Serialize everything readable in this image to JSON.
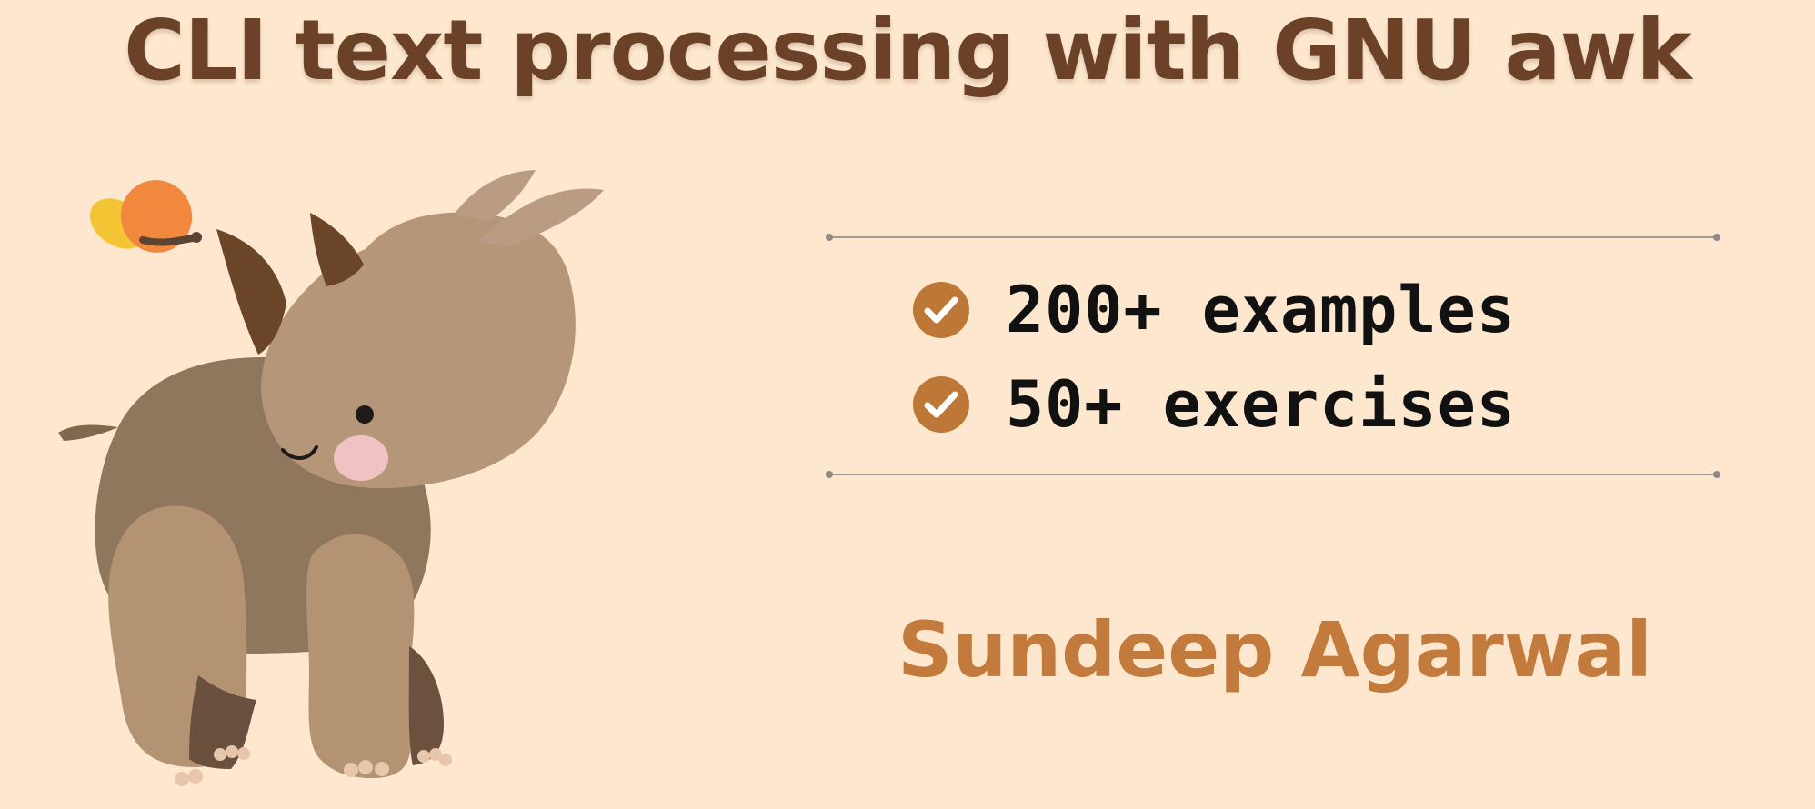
{
  "header": {
    "title": "CLI text processing with GNU awk"
  },
  "features": [
    {
      "icon": "check-circle-icon",
      "label": "200+ examples"
    },
    {
      "icon": "check-circle-icon",
      "label": "50+ exercises"
    }
  ],
  "author": {
    "name": "Sundeep Agarwal"
  },
  "illustration": {
    "subject": "rhino",
    "accent": "butterfly"
  },
  "colors": {
    "background": "#fde8cf",
    "title": "#6b4228",
    "author": "#c27a3d",
    "check": "#bd7736",
    "rule": "#a39a92",
    "text": "#111111"
  }
}
